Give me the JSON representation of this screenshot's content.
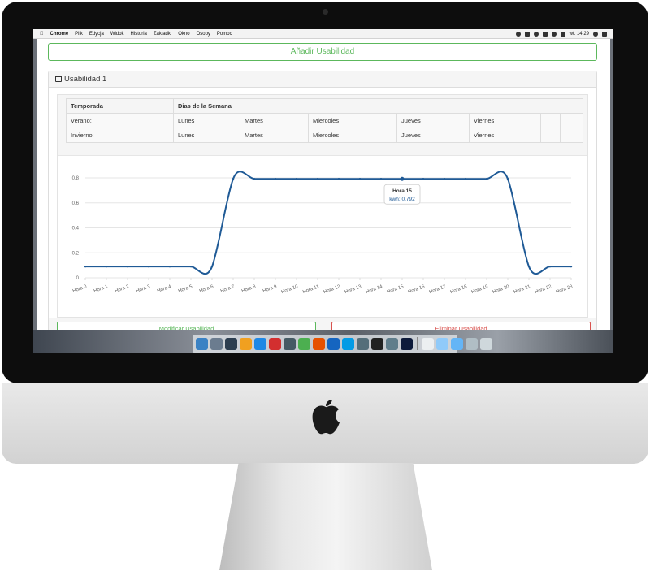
{
  "menubar": {
    "apple": "",
    "app": "Chrome",
    "items": [
      "Plik",
      "Edycja",
      "Widok",
      "Historia",
      "Zakładki",
      "Okno",
      "Osoby",
      "Pomoc"
    ],
    "clock": "wt. 14:29"
  },
  "page": {
    "add_button": "Añadir Usabilidad",
    "panel_title": "Usabilidad 1",
    "table": {
      "headers": [
        "Temporada",
        "Dias de la Semana"
      ],
      "rows": [
        {
          "season": "Verano:",
          "days": [
            "Lunes",
            "Martes",
            "Miercoles",
            "Jueves",
            "Viernes"
          ]
        },
        {
          "season": "Invierno:",
          "days": [
            "Lunes",
            "Martes",
            "Miercoles",
            "Jueves",
            "Viernes"
          ]
        }
      ]
    },
    "modify_button": "Modificar Usabilidad",
    "delete_button": "Eliminar Usabilidad"
  },
  "chart_data": {
    "type": "line",
    "categories": [
      "Hora 0",
      "Hora 1",
      "Hora 2",
      "Hora 3",
      "Hora 4",
      "Hora 5",
      "Hora 6",
      "Hora 7",
      "Hora 8",
      "Hora 9",
      "Hora 10",
      "Hora 11",
      "Hora 12",
      "Hora 13",
      "Hora 14",
      "Hora 15",
      "Hora 16",
      "Hora 17",
      "Hora 18",
      "Hora 19",
      "Hora 20",
      "Hora 21",
      "Hora 22",
      "Hora 23"
    ],
    "series": [
      {
        "values": [
          0.09,
          0.09,
          0.09,
          0.09,
          0.09,
          0.09,
          0.09,
          0.792,
          0.792,
          0.792,
          0.792,
          0.792,
          0.792,
          0.792,
          0.792,
          0.792,
          0.792,
          0.792,
          0.792,
          0.792,
          0.792,
          0.09,
          0.09,
          0.09
        ],
        "color": "#1f5a96"
      }
    ],
    "ylim": [
      0,
      0.8
    ],
    "yticks": [
      "0",
      "0.2",
      "0.4",
      "0.6",
      "0.8"
    ],
    "grid": true,
    "tooltip": {
      "title": "Hora 15",
      "label": "kwh: 0.792",
      "index": 15
    }
  },
  "dock": {
    "icons": [
      "finder-icon",
      "launchpad-icon",
      "app-icon",
      "app-icon",
      "app-icon",
      "app-icon",
      "app-icon",
      "chrome-icon",
      "firefox-icon",
      "app-icon",
      "skype-icon",
      "app-icon",
      "terminal-icon",
      "app-icon",
      "photoshop-icon",
      "document-icon",
      "folder-icon",
      "folder-icon",
      "app-icon",
      "trash-icon"
    ]
  }
}
